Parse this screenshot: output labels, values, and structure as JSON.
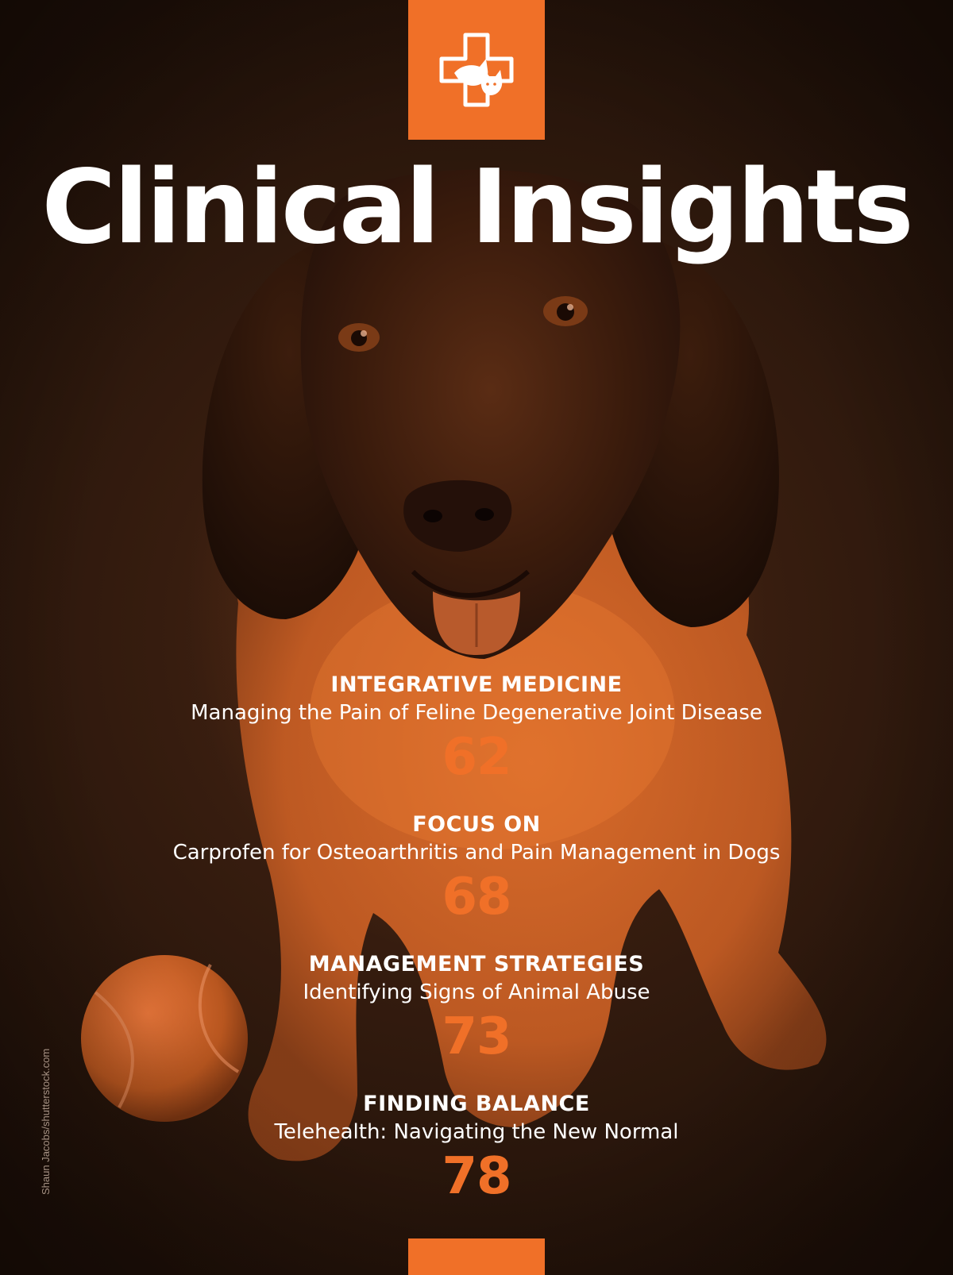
{
  "cover": {
    "title": "Clinical Insights",
    "logo_icon": "veterinary-cross-dog-cat-icon",
    "photo_subject": "dog-with-tennis-ball-photo",
    "photo_credit": "Shaun Jacobs/shutterstock.com"
  },
  "toc": [
    {
      "section": "INTEGRATIVE MEDICINE",
      "article": "Managing the Pain of Feline Degenerative Joint Disease",
      "page": "62"
    },
    {
      "section": "FOCUS ON",
      "article": "Carprofen for Osteoarthritis and Pain Management in Dogs",
      "page": "68"
    },
    {
      "section": "MANAGEMENT STRATEGIES",
      "article": "Identifying Signs of Animal Abuse",
      "page": "73"
    },
    {
      "section": "FINDING BALANCE",
      "article": "Telehealth: Navigating the New Normal",
      "page": "78"
    }
  ],
  "colors": {
    "accent": "#f07028",
    "background": "#2b170c",
    "text": "#ffffff"
  }
}
